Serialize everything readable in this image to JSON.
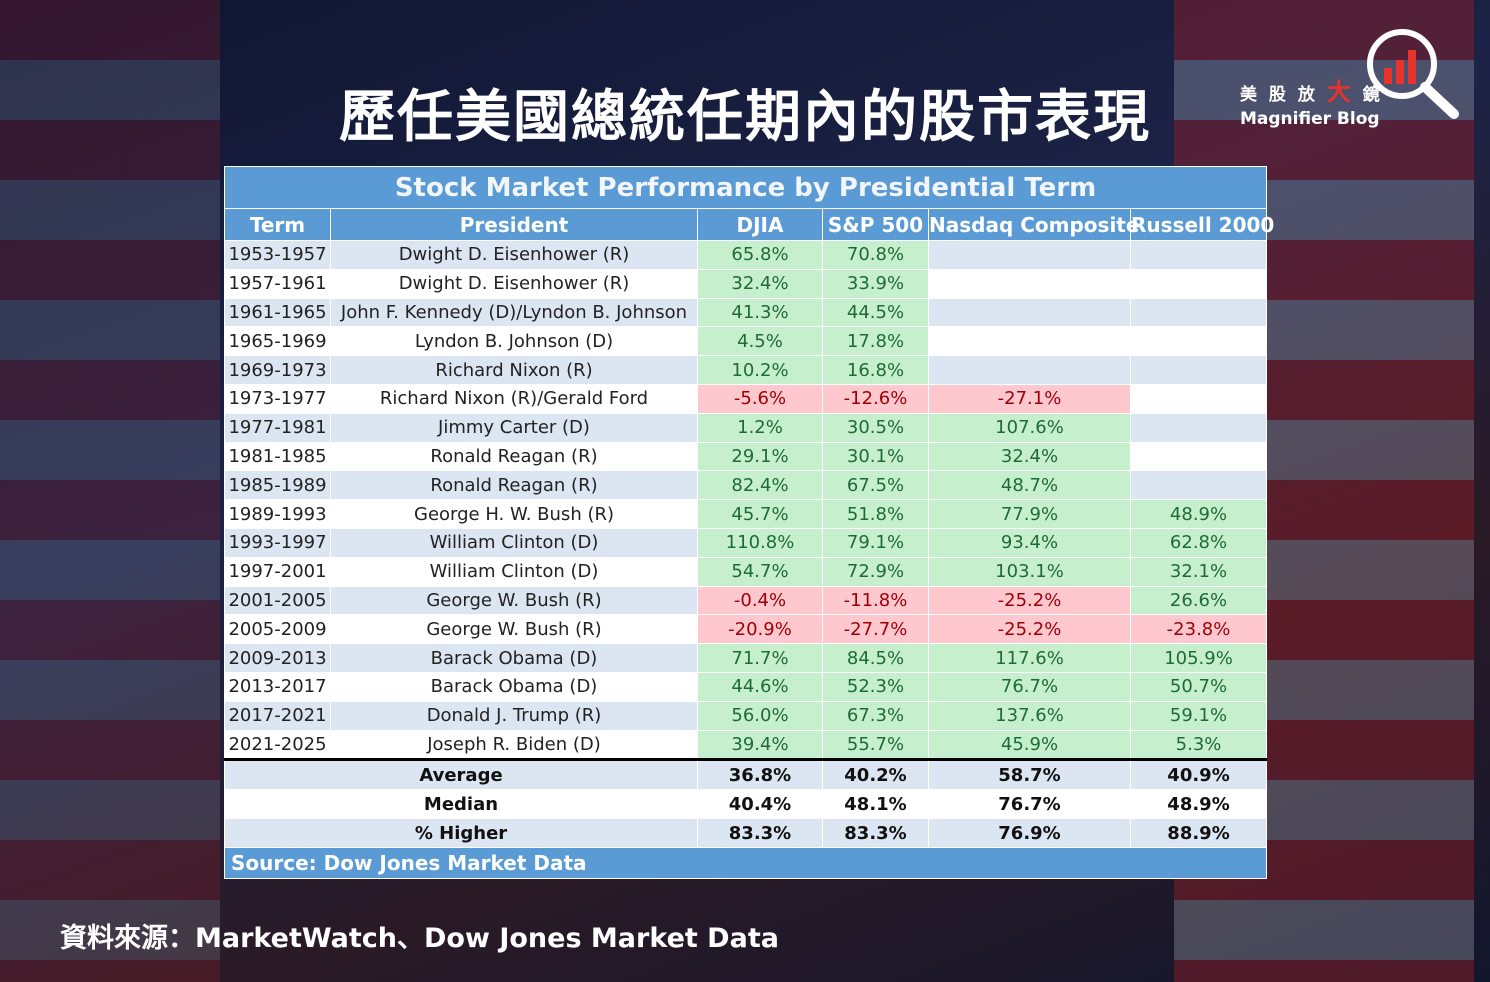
{
  "header": {
    "title": "歷任美國總統任期內的股市表現"
  },
  "logo": {
    "cn_prefix": "美 股 放",
    "cn_highlight": "大",
    "cn_suffix": "鏡",
    "en": "Magnifier Blog"
  },
  "table": {
    "title": "Stock Market Performance by Presidential Term",
    "columns": [
      "Term",
      "President",
      "DJIA",
      "S&P 500",
      "Nasdaq Composite",
      "Russell 2000"
    ],
    "rows": [
      [
        "1953-1957",
        "Dwight D. Eisenhower (R)",
        "65.8%",
        "70.8%",
        null,
        null
      ],
      [
        "1957-1961",
        "Dwight D. Eisenhower (R)",
        "32.4%",
        "33.9%",
        null,
        null
      ],
      [
        "1961-1965",
        "John F. Kennedy (D)/Lyndon B. Johnson",
        "41.3%",
        "44.5%",
        null,
        null
      ],
      [
        "1965-1969",
        "Lyndon B. Johnson (D)",
        "4.5%",
        "17.8%",
        null,
        null
      ],
      [
        "1969-1973",
        "Richard Nixon (R)",
        "10.2%",
        "16.8%",
        null,
        null
      ],
      [
        "1973-1977",
        "Richard Nixon (R)/Gerald Ford",
        "-5.6%",
        "-12.6%",
        "-27.1%",
        null
      ],
      [
        "1977-1981",
        "Jimmy Carter (D)",
        "1.2%",
        "30.5%",
        "107.6%",
        null
      ],
      [
        "1981-1985",
        "Ronald Reagan (R)",
        "29.1%",
        "30.1%",
        "32.4%",
        null
      ],
      [
        "1985-1989",
        "Ronald Reagan (R)",
        "82.4%",
        "67.5%",
        "48.7%",
        null
      ],
      [
        "1989-1993",
        "George H. W. Bush (R)",
        "45.7%",
        "51.8%",
        "77.9%",
        "48.9%"
      ],
      [
        "1993-1997",
        "William Clinton (D)",
        "110.8%",
        "79.1%",
        "93.4%",
        "62.8%"
      ],
      [
        "1997-2001",
        "William Clinton (D)",
        "54.7%",
        "72.9%",
        "103.1%",
        "32.1%"
      ],
      [
        "2001-2005",
        "George W. Bush (R)",
        "-0.4%",
        "-11.8%",
        "-25.2%",
        "26.6%"
      ],
      [
        "2005-2009",
        "George W. Bush (R)",
        "-20.9%",
        "-27.7%",
        "-25.2%",
        "-23.8%"
      ],
      [
        "2009-2013",
        "Barack Obama (D)",
        "71.7%",
        "84.5%",
        "117.6%",
        "105.9%"
      ],
      [
        "2013-2017",
        "Barack Obama (D)",
        "44.6%",
        "52.3%",
        "76.7%",
        "50.7%"
      ],
      [
        "2017-2021",
        "Donald J. Trump (R)",
        "56.0%",
        "67.3%",
        "137.6%",
        "59.1%"
      ],
      [
        "2021-2025",
        "Joseph R. Biden (D)",
        "39.4%",
        "55.7%",
        "45.9%",
        "5.3%"
      ]
    ],
    "summary": [
      [
        "Average",
        "36.8%",
        "40.2%",
        "58.7%",
        "40.9%"
      ],
      [
        "Median",
        "40.4%",
        "48.1%",
        "76.7%",
        "48.9%"
      ],
      [
        "% Higher",
        "83.3%",
        "83.3%",
        "76.9%",
        "88.9%"
      ]
    ],
    "source": "Source: Dow Jones Market Data"
  },
  "footer": {
    "source": "資料來源：MarketWatch、Dow Jones Market Data"
  }
}
